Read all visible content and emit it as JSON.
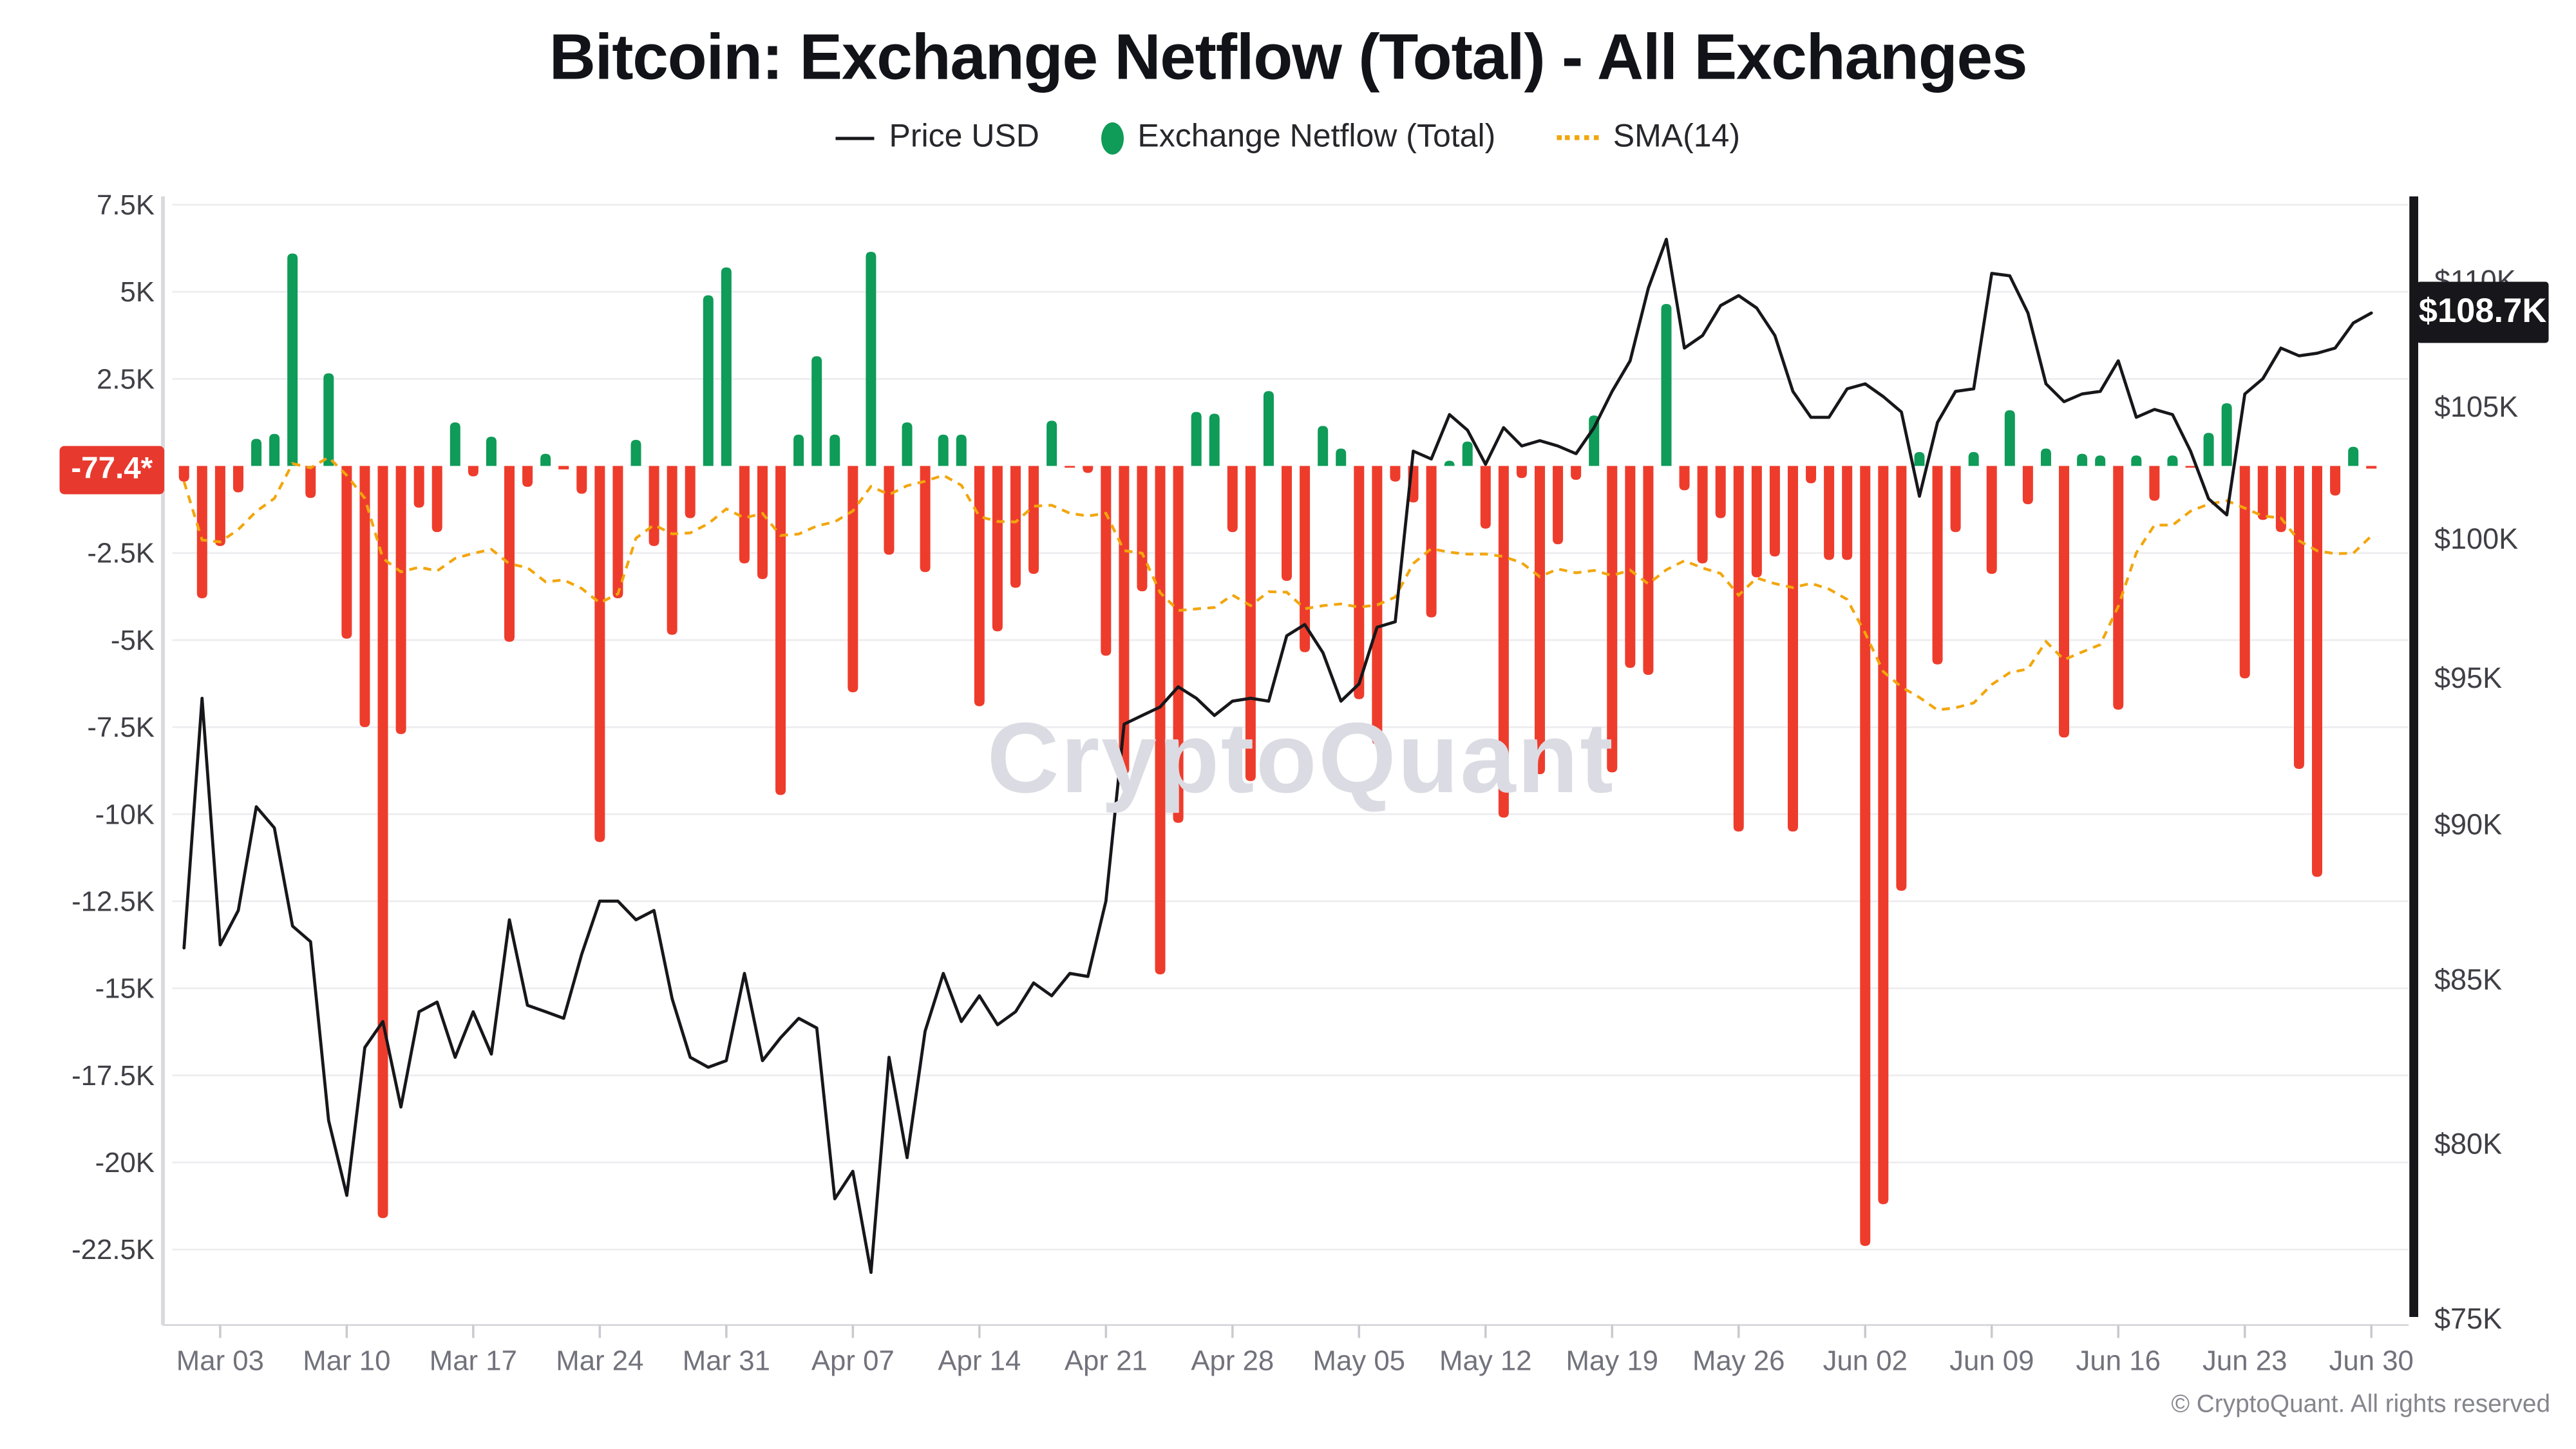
{
  "title": "Bitcoin: Exchange Netflow (Total) - All Exchanges",
  "legend": {
    "price_label": "Price USD",
    "netflow_label": "Exchange Netflow (Total)",
    "sma_label": "SMA(14)"
  },
  "badges": {
    "netflow_last": "-77.4*",
    "price_last": "$108.7K"
  },
  "watermark": "CryptoQuant",
  "footer": "© CryptoQuant. All rights reserved",
  "colors": {
    "green": "#0f9b58",
    "red": "#ee3c2c",
    "badge_red": "#e8392e",
    "price": "#17171b",
    "sma": "#f2a60d",
    "grid": "#ededf0",
    "axis_line": "#d9d9de",
    "tick_label": "#3f3f46",
    "x_label": "#72727c"
  },
  "chart_data": {
    "type": "mixed",
    "title": "Bitcoin: Exchange Netflow (Total) - All Exchanges",
    "left_axis": {
      "ticks": [
        7500,
        5000,
        2500,
        0,
        -2500,
        -5000,
        -7500,
        -10000,
        -12500,
        -15000,
        -17500,
        -20000,
        -22500
      ],
      "tick_labels": [
        "7.5K",
        "5K",
        "2.5K",
        "",
        "-2.5K",
        "-5K",
        "-7.5K",
        "-10K",
        "-12.5K",
        "-15K",
        "-17.5K",
        "-20K",
        "-22.5K"
      ],
      "ylim": [
        -24000,
        8000
      ]
    },
    "right_axis": {
      "scale": "log",
      "ticks": [
        110000,
        105000,
        100000,
        95000,
        90000,
        85000,
        80000,
        75000
      ],
      "tick_labels": [
        "$110K",
        "$105K",
        "$100K",
        "$95K",
        "$90K",
        "$85K",
        "$80K",
        "$75K"
      ]
    },
    "x_tick_labels": [
      "Mar 03",
      "Mar 10",
      "Mar 17",
      "Mar 24",
      "Mar 31",
      "Apr 07",
      "Apr 14",
      "Apr 21",
      "Apr 28",
      "May 05",
      "May 12",
      "May 19",
      "May 26",
      "Jun 02",
      "Jun 09",
      "Jun 16",
      "Jun 23",
      "Jun 30"
    ],
    "x_tick_indices": [
      2,
      9,
      16,
      23,
      30,
      37,
      44,
      51,
      58,
      65,
      72,
      79,
      86,
      93,
      100,
      107,
      114,
      121
    ],
    "dates": [
      "Mar 01",
      "Mar 02",
      "Mar 03",
      "Mar 04",
      "Mar 05",
      "Mar 06",
      "Mar 07",
      "Mar 08",
      "Mar 09",
      "Mar 10",
      "Mar 11",
      "Mar 12",
      "Mar 13",
      "Mar 14",
      "Mar 15",
      "Mar 16",
      "Mar 17",
      "Mar 18",
      "Mar 19",
      "Mar 20",
      "Mar 21",
      "Mar 22",
      "Mar 23",
      "Mar 24",
      "Mar 25",
      "Mar 26",
      "Mar 27",
      "Mar 28",
      "Mar 29",
      "Mar 30",
      "Mar 31",
      "Apr 01",
      "Apr 02",
      "Apr 03",
      "Apr 04",
      "Apr 05",
      "Apr 06",
      "Apr 07",
      "Apr 08",
      "Apr 09",
      "Apr 10",
      "Apr 11",
      "Apr 12",
      "Apr 13",
      "Apr 14",
      "Apr 15",
      "Apr 16",
      "Apr 17",
      "Apr 18",
      "Apr 19",
      "Apr 20",
      "Apr 21",
      "Apr 22",
      "Apr 23",
      "Apr 24",
      "Apr 25",
      "Apr 26",
      "Apr 27",
      "Apr 28",
      "Apr 29",
      "Apr 30",
      "May 01",
      "May 02",
      "May 03",
      "May 04",
      "May 05",
      "May 06",
      "May 07",
      "May 08",
      "May 09",
      "May 10",
      "May 11",
      "May 12",
      "May 13",
      "May 14",
      "May 15",
      "May 16",
      "May 17",
      "May 18",
      "May 19",
      "May 20",
      "May 21",
      "May 22",
      "May 23",
      "May 24",
      "May 25",
      "May 26",
      "May 27",
      "May 28",
      "May 29",
      "May 30",
      "May 31",
      "Jun 01",
      "Jun 02",
      "Jun 03",
      "Jun 04",
      "Jun 05",
      "Jun 06",
      "Jun 07",
      "Jun 08",
      "Jun 09",
      "Jun 10",
      "Jun 11",
      "Jun 12",
      "Jun 13",
      "Jun 14",
      "Jun 15",
      "Jun 16",
      "Jun 17",
      "Jun 18",
      "Jun 19",
      "Jun 20",
      "Jun 21",
      "Jun 22",
      "Jun 23",
      "Jun 24",
      "Jun 25",
      "Jun 26",
      "Jun 27",
      "Jun 28",
      "Jun 29",
      "Jun 30"
    ],
    "series": [
      {
        "name": "Exchange Netflow (Total)",
        "type": "bar",
        "axis": "left",
        "values": [
          -450,
          -3800,
          -2300,
          -760,
          780,
          920,
          6100,
          -920,
          2660,
          -4960,
          -7500,
          -21600,
          -7700,
          -1200,
          -1900,
          1250,
          -300,
          840,
          -5050,
          -600,
          350,
          -100,
          -800,
          -10800,
          -3800,
          750,
          -2300,
          -4850,
          -1500,
          4900,
          5700,
          -2800,
          -3250,
          -9450,
          900,
          3150,
          900,
          -6500,
          6150,
          -2550,
          1250,
          -3050,
          900,
          900,
          -6900,
          -4750,
          -3500,
          -3100,
          1300,
          -50,
          -200,
          -5450,
          -8850,
          -3600,
          -14600,
          -10250,
          1550,
          1500,
          -1900,
          -9050,
          2150,
          -3300,
          -5350,
          1150,
          500,
          -6700,
          -8000,
          -450,
          -1050,
          -4350,
          150,
          700,
          -1800,
          -10100,
          -350,
          -8850,
          -2250,
          -400,
          1450,
          -8800,
          -5800,
          -6000,
          4650,
          -700,
          -2800,
          -1500,
          -10500,
          -3200,
          -2600,
          -10500,
          -500,
          -2700,
          -2700,
          -22400,
          -21200,
          -12200,
          400,
          -5700,
          -1900,
          400,
          -3100,
          1600,
          -1100,
          500,
          -7800,
          350,
          300,
          -7000,
          300,
          -1000,
          300,
          -50,
          950,
          1800,
          -6100,
          -1550,
          -1900,
          -8700,
          -11800,
          -850,
          550,
          -77.4
        ]
      },
      {
        "name": "SMA(14)",
        "type": "dashed-line",
        "axis": "left",
        "computed_from": "14-day simple moving average of Exchange Netflow (Total)"
      },
      {
        "name": "Price USD",
        "type": "line",
        "axis": "right",
        "values": [
          86000,
          94300,
          86100,
          87200,
          90600,
          89900,
          86700,
          86200,
          80700,
          78500,
          82900,
          83700,
          81100,
          84000,
          84300,
          82600,
          84000,
          82700,
          86900,
          84200,
          84000,
          83800,
          85800,
          87500,
          87500,
          86900,
          87200,
          84400,
          82600,
          82300,
          82500,
          85200,
          82500,
          83200,
          83800,
          83500,
          78400,
          79200,
          76300,
          82600,
          79600,
          83400,
          85200,
          83700,
          84500,
          83600,
          84000,
          84900,
          84500,
          85200,
          85100,
          87500,
          93400,
          93700,
          94000,
          94700,
          94300,
          93700,
          94200,
          94300,
          94200,
          96500,
          96900,
          95900,
          94200,
          94800,
          96800,
          97000,
          103300,
          103000,
          104700,
          104100,
          102800,
          104200,
          103500,
          103700,
          103500,
          103200,
          104200,
          105600,
          106800,
          109700,
          111700,
          107300,
          107800,
          109000,
          109400,
          108900,
          107800,
          105600,
          104600,
          104600,
          105700,
          105900,
          105400,
          104800,
          101600,
          104400,
          105600,
          105700,
          110300,
          110200,
          108700,
          105900,
          105200,
          105500,
          105600,
          106800,
          104600,
          104900,
          104700,
          103300,
          101500,
          100900,
          105500,
          106100,
          107300,
          107000,
          107100,
          107300,
          108300,
          108700
        ]
      }
    ],
    "last_values": {
      "netflow": -77.4,
      "price_usd": 108700
    }
  }
}
